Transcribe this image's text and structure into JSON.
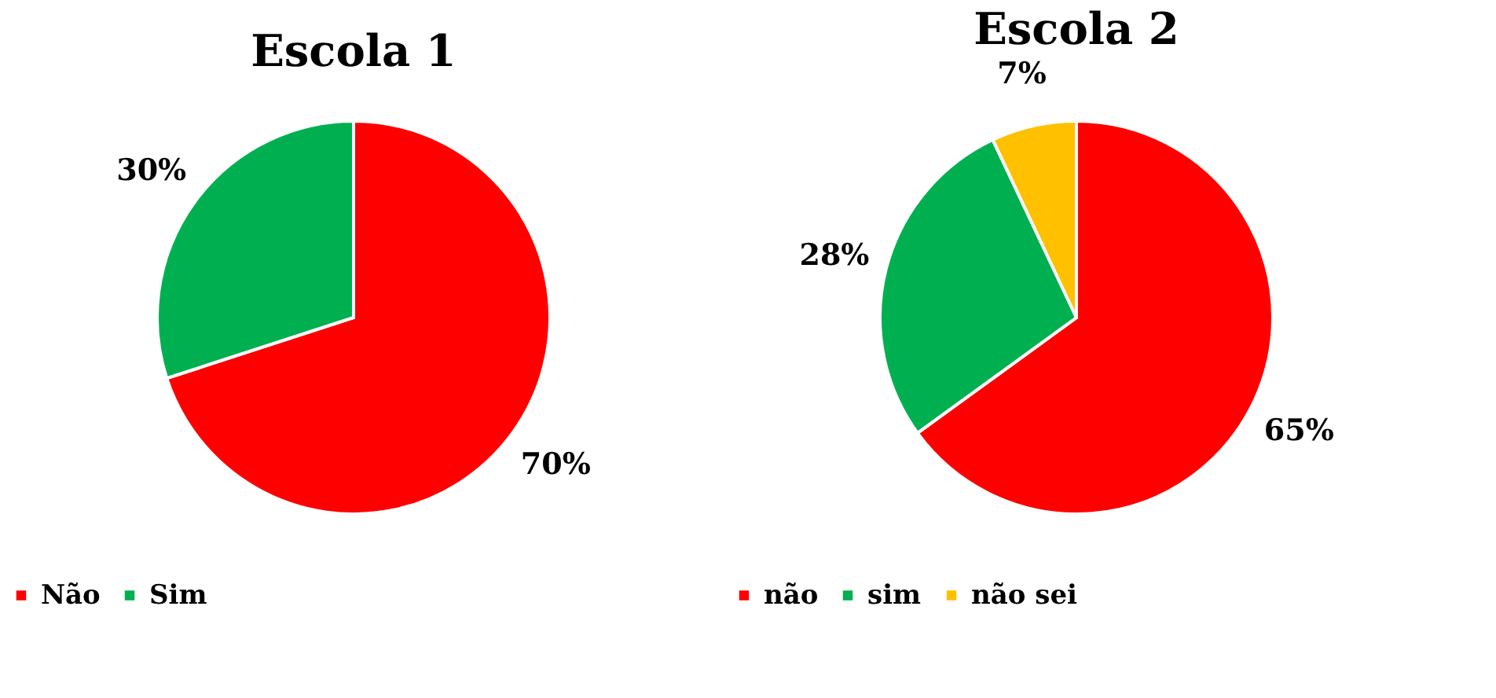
{
  "chart_data": [
    {
      "type": "pie",
      "title": "Escola 1",
      "categories": [
        "Não",
        "Sim"
      ],
      "values": [
        70,
        30
      ],
      "colors": [
        "#ff0000",
        "#00b050"
      ],
      "value_labels": [
        "70%",
        "30%"
      ],
      "legend": "bottom"
    },
    {
      "type": "pie",
      "title": "Escola 2",
      "categories": [
        "não",
        "sim",
        "não sei"
      ],
      "values": [
        65,
        28,
        7
      ],
      "colors": [
        "#ff0000",
        "#00b050",
        "#ffc000"
      ],
      "value_labels": [
        "65%",
        "28%",
        "7%"
      ],
      "legend": "bottom"
    }
  ]
}
